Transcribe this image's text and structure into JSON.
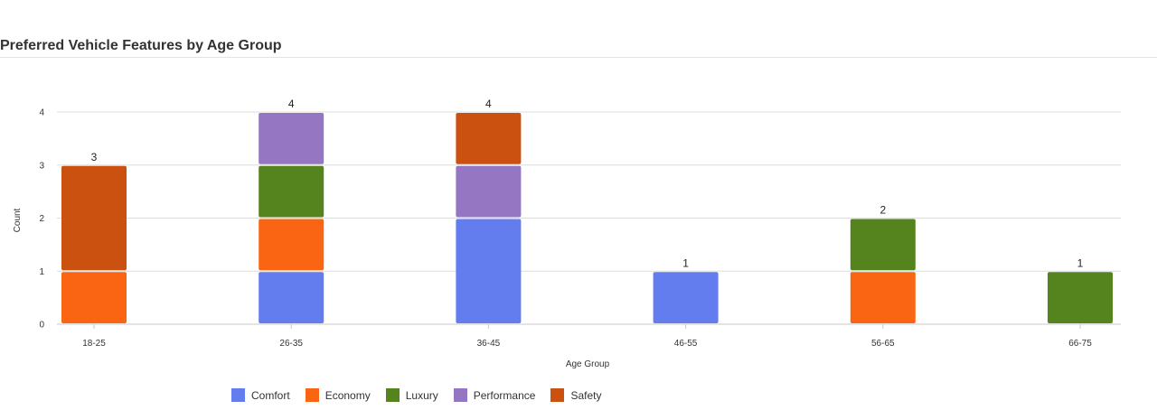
{
  "chart_data": {
    "type": "bar",
    "stacked": true,
    "title": "Preferred Vehicle Features by Age Group",
    "xlabel": "Age Group",
    "ylabel": "Count",
    "ylim": [
      0,
      4
    ],
    "yticks": [
      "0",
      "1",
      "2",
      "3",
      "4"
    ],
    "grid": true,
    "legend_position": "bottom-left",
    "categories": [
      "18-25",
      "26-35",
      "36-45",
      "46-55",
      "56-65",
      "66-75"
    ],
    "totals": [
      "3",
      "4",
      "4",
      "1",
      "2",
      "1"
    ],
    "series": [
      {
        "name": "Comfort",
        "color": "#637dee",
        "values": [
          0,
          1,
          2,
          1,
          0,
          0
        ]
      },
      {
        "name": "Economy",
        "color": "#f96513",
        "values": [
          1,
          1,
          0,
          0,
          1,
          0
        ]
      },
      {
        "name": "Luxury",
        "color": "#55831d",
        "values": [
          0,
          1,
          0,
          0,
          1,
          1
        ]
      },
      {
        "name": "Performance",
        "color": "#9576c2",
        "values": [
          0,
          1,
          1,
          0,
          0,
          0
        ]
      },
      {
        "name": "Safety",
        "color": "#cb5111",
        "values": [
          2,
          0,
          1,
          0,
          0,
          0
        ]
      }
    ]
  }
}
